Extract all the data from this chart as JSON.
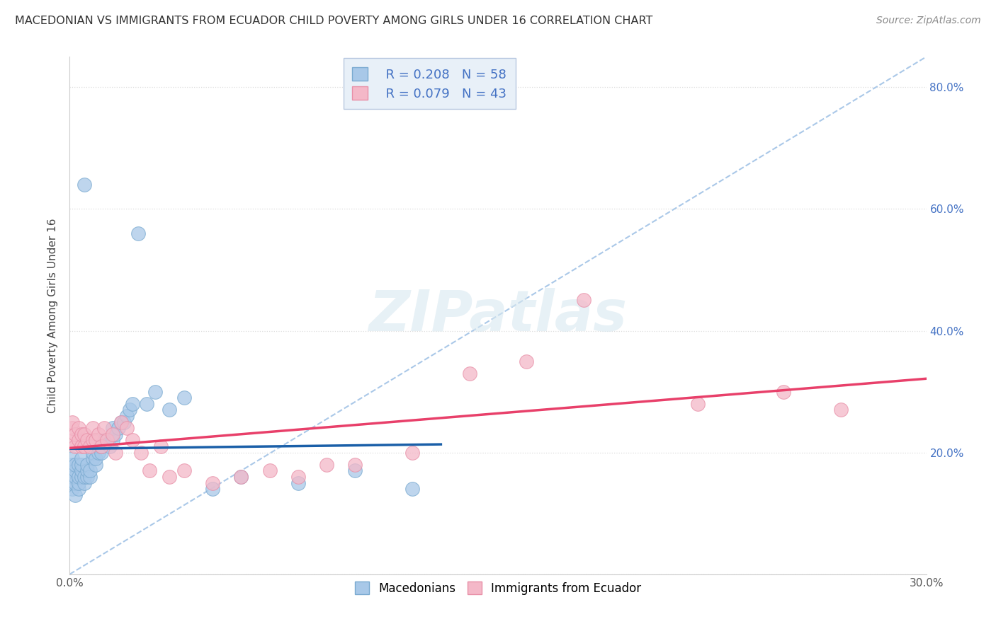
{
  "title": "MACEDONIAN VS IMMIGRANTS FROM ECUADOR CHILD POVERTY AMONG GIRLS UNDER 16 CORRELATION CHART",
  "source": "Source: ZipAtlas.com",
  "ylabel": "Child Poverty Among Girls Under 16",
  "xlabel": "",
  "xlim": [
    0.0,
    0.3
  ],
  "ylim": [
    0.0,
    0.85
  ],
  "x_tick_positions": [
    0.0,
    0.3
  ],
  "x_tick_labels": [
    "0.0%",
    "30.0%"
  ],
  "y_tick_positions": [
    0.0,
    0.2,
    0.4,
    0.6,
    0.8
  ],
  "y_tick_labels": [
    "",
    "20.0%",
    "40.0%",
    "60.0%",
    "80.0%"
  ],
  "macedonian_R": 0.208,
  "macedonian_N": 58,
  "ecuador_R": 0.079,
  "ecuador_N": 43,
  "macedonian_color": "#a8c8e8",
  "ecuador_color": "#f4b8c8",
  "macedonian_scatter_edge": "#7aaad0",
  "ecuador_scatter_edge": "#e890a8",
  "macedonian_line_color": "#1a5fa8",
  "ecuador_line_color": "#e8406a",
  "diagonal_line_color": "#aac8e8",
  "diagonal_line_style": "--",
  "background_color": "#ffffff",
  "grid_color": "#dddddd",
  "grid_style": ":",
  "legend_box_color": "#e8f0f8",
  "legend_border_color": "#b8c8e0",
  "watermark_text": "ZIPatlas",
  "watermark_color": "#d8e8f0",
  "bottom_legend_labels": [
    "Macedonians",
    "Immigrants from Ecuador"
  ],
  "mac_x": [
    0.001,
    0.001,
    0.001,
    0.001,
    0.001,
    0.001,
    0.001,
    0.002,
    0.002,
    0.002,
    0.002,
    0.002,
    0.003,
    0.003,
    0.003,
    0.003,
    0.004,
    0.004,
    0.004,
    0.004,
    0.005,
    0.005,
    0.005,
    0.006,
    0.006,
    0.006,
    0.007,
    0.007,
    0.008,
    0.008,
    0.009,
    0.009,
    0.01,
    0.01,
    0.011,
    0.011,
    0.012,
    0.013,
    0.014,
    0.015,
    0.015,
    0.016,
    0.017,
    0.018,
    0.019,
    0.02,
    0.021,
    0.022,
    0.024,
    0.027,
    0.03,
    0.035,
    0.04,
    0.05,
    0.06,
    0.08,
    0.1,
    0.12
  ],
  "mac_y": [
    0.14,
    0.15,
    0.16,
    0.17,
    0.17,
    0.18,
    0.19,
    0.13,
    0.15,
    0.16,
    0.17,
    0.18,
    0.14,
    0.15,
    0.16,
    0.18,
    0.16,
    0.17,
    0.18,
    0.19,
    0.15,
    0.16,
    0.64,
    0.16,
    0.17,
    0.18,
    0.16,
    0.17,
    0.19,
    0.2,
    0.18,
    0.19,
    0.2,
    0.21,
    0.2,
    0.21,
    0.22,
    0.22,
    0.21,
    0.22,
    0.24,
    0.23,
    0.24,
    0.25,
    0.25,
    0.26,
    0.27,
    0.28,
    0.56,
    0.28,
    0.3,
    0.27,
    0.29,
    0.14,
    0.16,
    0.15,
    0.17,
    0.14
  ],
  "ecu_x": [
    0.001,
    0.001,
    0.001,
    0.002,
    0.002,
    0.003,
    0.003,
    0.004,
    0.004,
    0.005,
    0.005,
    0.006,
    0.007,
    0.008,
    0.008,
    0.009,
    0.01,
    0.011,
    0.012,
    0.013,
    0.015,
    0.016,
    0.018,
    0.02,
    0.022,
    0.025,
    0.028,
    0.032,
    0.035,
    0.04,
    0.05,
    0.06,
    0.07,
    0.08,
    0.09,
    0.1,
    0.12,
    0.14,
    0.16,
    0.18,
    0.22,
    0.25,
    0.27
  ],
  "ecu_y": [
    0.22,
    0.24,
    0.25,
    0.21,
    0.23,
    0.22,
    0.24,
    0.21,
    0.23,
    0.21,
    0.23,
    0.22,
    0.21,
    0.22,
    0.24,
    0.22,
    0.23,
    0.21,
    0.24,
    0.22,
    0.23,
    0.2,
    0.25,
    0.24,
    0.22,
    0.2,
    0.17,
    0.21,
    0.16,
    0.17,
    0.15,
    0.16,
    0.17,
    0.16,
    0.18,
    0.18,
    0.2,
    0.33,
    0.35,
    0.45,
    0.28,
    0.3,
    0.27
  ]
}
